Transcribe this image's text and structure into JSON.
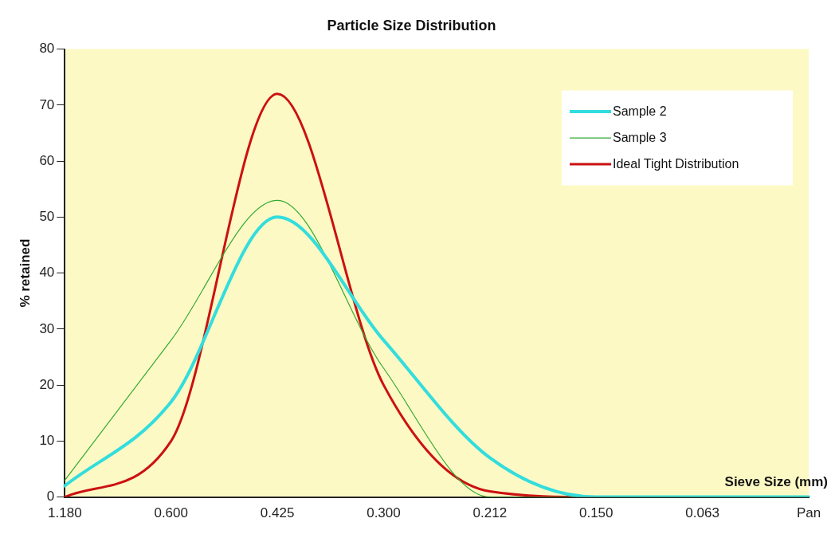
{
  "chart_data": {
    "type": "line",
    "title": "Particle Size Distribution",
    "xlabel": "Sieve Size (mm)",
    "ylabel": "% retained",
    "categories": [
      "1.180",
      "0.600",
      "0.425",
      "0.300",
      "0.212",
      "0.150",
      "0.063",
      "Pan"
    ],
    "series": [
      {
        "name": "Sample 2",
        "color": "#33dddd",
        "values": [
          2,
          17,
          50,
          28,
          7,
          0,
          0,
          0
        ]
      },
      {
        "name": "Sample 3",
        "color": "#33aa33",
        "values": [
          3,
          28,
          53,
          23,
          0,
          0,
          0,
          0
        ]
      },
      {
        "name": "Ideal Tight Distribution",
        "color": "#cc1111",
        "values": [
          0,
          10,
          72,
          20,
          1,
          0,
          0,
          0
        ]
      }
    ],
    "ylim": [
      0,
      80
    ],
    "yticks": [
      0,
      10,
      20,
      30,
      40,
      50,
      60,
      70,
      80
    ],
    "grid": false,
    "legend": "top right",
    "marker": "none",
    "line_style": "solid"
  }
}
